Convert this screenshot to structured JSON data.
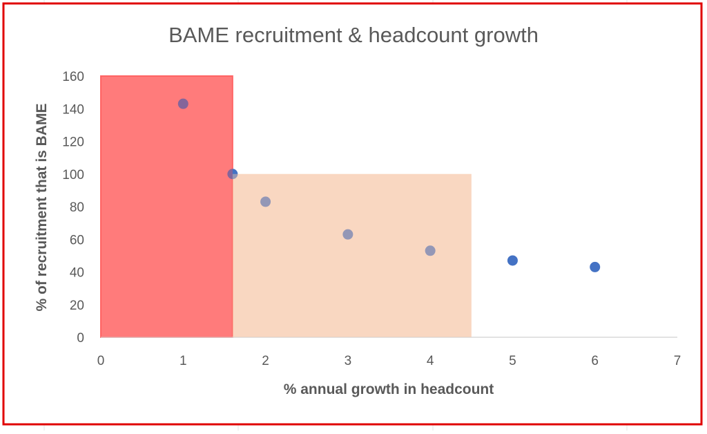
{
  "chart_data": {
    "type": "scatter",
    "title": "BAME recruitment & headcount growth",
    "xlabel": "% annual growth in headcount",
    "ylabel": "% of recruitment that is BAME",
    "xlim": [
      0,
      7
    ],
    "ylim": [
      0,
      160
    ],
    "xticks": [
      0,
      1,
      2,
      3,
      4,
      5,
      6,
      7
    ],
    "yticks": [
      0,
      20,
      40,
      60,
      80,
      100,
      120,
      140,
      160
    ],
    "grid": false,
    "legend": "none",
    "points": [
      {
        "x": 1.0,
        "y": 143
      },
      {
        "x": 1.6,
        "y": 100
      },
      {
        "x": 2.0,
        "y": 83
      },
      {
        "x": 3.0,
        "y": 63
      },
      {
        "x": 4.0,
        "y": 53
      },
      {
        "x": 5.0,
        "y": 47
      },
      {
        "x": 6.0,
        "y": 43
      }
    ],
    "shaded_regions": [
      {
        "x0": 0,
        "x1": 1.6,
        "y0": 0,
        "y1": 160,
        "color": "#ff5b5b",
        "opacity": 0.65
      },
      {
        "x0": 1.6,
        "x1": 4.5,
        "y0": 0,
        "y1": 100,
        "color": "#f6c6a6",
        "opacity": 0.45
      }
    ],
    "colors": {
      "marker": "#4472c4",
      "axis": "#d9d9d9",
      "text": "#595959",
      "border": "#e00000"
    }
  }
}
